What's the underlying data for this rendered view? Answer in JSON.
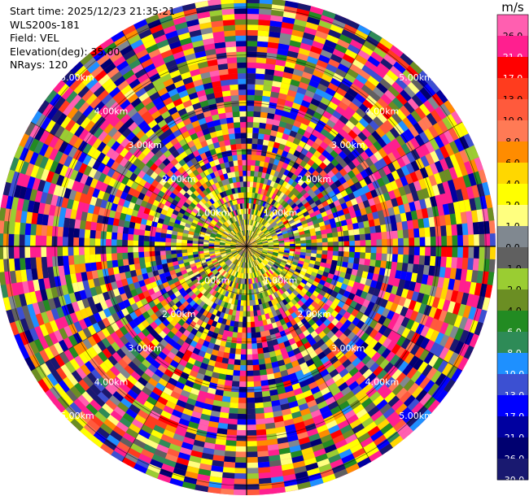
{
  "header": {
    "start_time": "Start time: 2025/12/23 21:35:21",
    "instrument": "WLS200s-181",
    "field": "Field: VEL",
    "elevation": "Elevation(deg): 35.00",
    "nrays": "NRays: 120"
  },
  "colorbar": {
    "unit": "m/s",
    "bins": [
      {
        "label": "26.0",
        "color": "#ff5fb0"
      },
      {
        "label": "21.0",
        "color": "#ff1f8f"
      },
      {
        "label": "17.0",
        "color": "#ff0000"
      },
      {
        "label": "13.0",
        "color": "#ff3c1e"
      },
      {
        "label": "10.0",
        "color": "#ff5a3c"
      },
      {
        "label": "8.0",
        "color": "#ff7a55"
      },
      {
        "label": "6.0",
        "color": "#ff8c00"
      },
      {
        "label": "4.0",
        "color": "#ffd700"
      },
      {
        "label": "2.0",
        "color": "#ffff00"
      },
      {
        "label": "1.0",
        "color": "#ffff7f"
      },
      {
        "label": "0.0",
        "color": "#808890"
      },
      {
        "label": "-1.0",
        "color": "#606060"
      },
      {
        "label": "-2.0",
        "color": "#9acd32"
      },
      {
        "label": "-4.0",
        "color": "#6b8e23"
      },
      {
        "label": "-6.0",
        "color": "#228b22"
      },
      {
        "label": "-8.0",
        "color": "#2e8b57"
      },
      {
        "label": "-10.0",
        "color": "#1e90ff"
      },
      {
        "label": "-13.0",
        "color": "#3c50d2"
      },
      {
        "label": "-17.0",
        "color": "#0000ff"
      },
      {
        "label": "-21.0",
        "color": "#0000a0"
      },
      {
        "label": "-26.0",
        "color": "#000070"
      },
      {
        "label": "-30.0",
        "color": "#191970"
      }
    ]
  },
  "chart_data": {
    "type": "heatmap",
    "projection": "polar-ppi",
    "field": "VEL",
    "nrays": 120,
    "range_rings_km": [
      1,
      2,
      3,
      4,
      5
    ],
    "ring_labels": [
      "1.00km",
      "2.00km",
      "3.00km",
      "4.00km",
      "5.00km"
    ],
    "grid": true,
    "colorbar_placement": "right"
  }
}
